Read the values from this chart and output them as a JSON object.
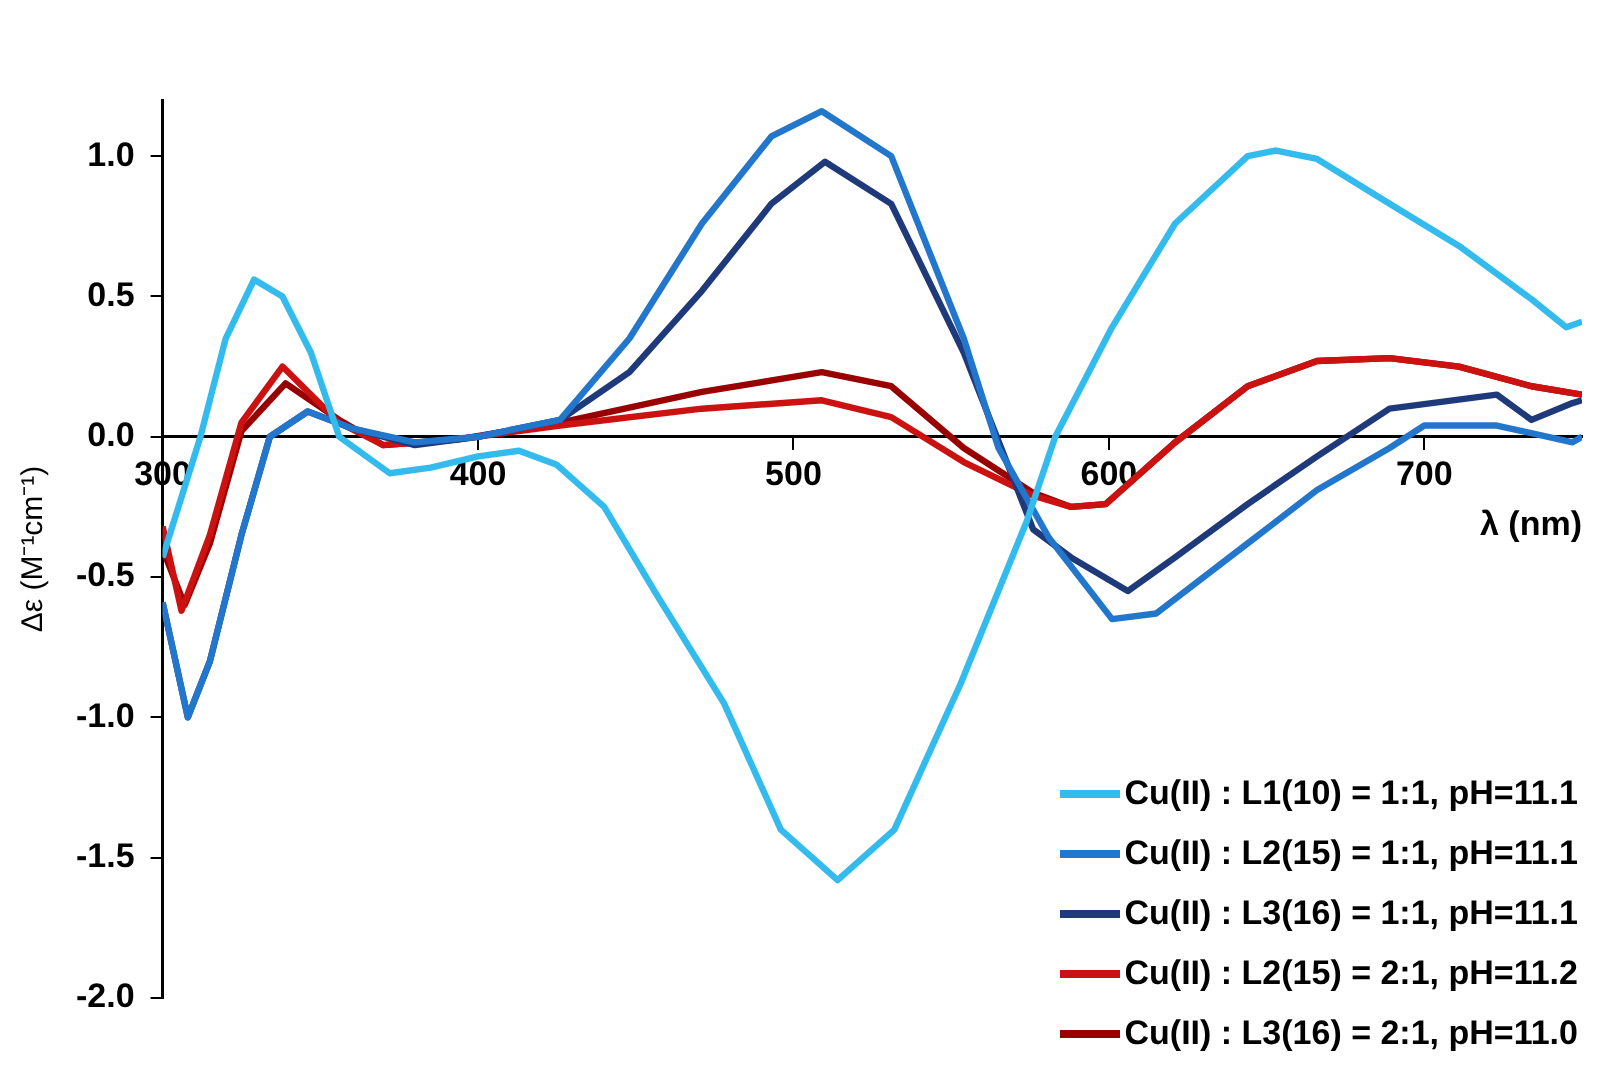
{
  "chart_data": {
    "type": "line",
    "xlabel": "λ (nm)",
    "ylabel": "Δε (M⁻¹cm⁻¹)",
    "xlim": [
      300,
      750
    ],
    "xticks": [
      300,
      400,
      500,
      600,
      700
    ],
    "ylim": [
      -2,
      1.2
    ],
    "yticks": [
      {
        "value": -2,
        "label": "-2.0"
      },
      {
        "value": -1.5,
        "label": "-1.5"
      },
      {
        "value": -1,
        "label": "-1.0"
      },
      {
        "value": -0.5,
        "label": "-0.5"
      },
      {
        "value": 0,
        "label": "0.0"
      },
      {
        "value": 0.5,
        "label": "0.5"
      },
      {
        "value": 1,
        "label": "1.0"
      }
    ],
    "grid": false,
    "legend": "bottom right",
    "marker": "none",
    "line_style": "solid",
    "series": [
      {
        "name": "Cu(II) : L1(10) = 1:1, pH=11.1",
        "color": "#33bbee",
        "x": [
          300,
          312,
          320,
          329,
          338,
          347,
          356,
          372,
          385,
          400,
          413,
          425,
          440,
          457,
          478,
          496,
          514,
          532,
          553,
          574,
          583,
          601,
          621,
          644,
          653,
          666,
          689,
          711,
          734,
          745,
          750
        ],
        "values": [
          -0.43,
          0,
          0.35,
          0.56,
          0.5,
          0.3,
          0,
          -0.13,
          -0.11,
          -0.07,
          -0.05,
          -0.1,
          -0.25,
          -0.57,
          -0.95,
          -1.4,
          -1.58,
          -1.4,
          -0.88,
          -0.3,
          0,
          0.39,
          0.76,
          1,
          1.02,
          0.99,
          0.83,
          0.68,
          0.49,
          0.39,
          0.41
        ]
      },
      {
        "name": "Cu(II) : L2(15) = 1:1, pH=11.1",
        "color": "#2277cc",
        "x": [
          300,
          308,
          315,
          325,
          334,
          346,
          360,
          380,
          400,
          426,
          448,
          471,
          493,
          509,
          531,
          554,
          565,
          581,
          601,
          615,
          644,
          666,
          689,
          700,
          723,
          747,
          750
        ],
        "values": [
          -0.59,
          -1.0,
          -0.8,
          -0.35,
          0,
          0.09,
          0.03,
          -0.02,
          0,
          0.06,
          0.35,
          0.76,
          1.07,
          1.16,
          1.0,
          0.35,
          -0.04,
          -0.36,
          -0.65,
          -0.63,
          -0.38,
          -0.19,
          -0.04,
          0.04,
          0.04,
          -0.02,
          0
        ]
      },
      {
        "name": "Cu(II) : L3(16) = 1:1, pH=11.1",
        "color": "#1f3a7a",
        "x": [
          300,
          308,
          315,
          325,
          334,
          346,
          360,
          380,
          400,
          426,
          448,
          471,
          493,
          510,
          531,
          554,
          576,
          588,
          606,
          621,
          644,
          666,
          689,
          723,
          734,
          747,
          750
        ],
        "values": [
          -0.59,
          -1.0,
          -0.8,
          -0.35,
          0,
          0.09,
          0.03,
          -0.03,
          0,
          0.06,
          0.23,
          0.52,
          0.83,
          0.98,
          0.83,
          0.3,
          -0.33,
          -0.43,
          -0.55,
          -0.43,
          -0.24,
          -0.07,
          0.1,
          0.15,
          0.06,
          0.12,
          0.13
        ]
      },
      {
        "name": "Cu(II) : L2(15) = 2:1, pH=11.2",
        "color": "#cc1111",
        "x": [
          300,
          306,
          315,
          325,
          338,
          356,
          370,
          393,
          426,
          471,
          509,
          531,
          554,
          576,
          588,
          599,
          621,
          644,
          666,
          689,
          711,
          734,
          750
        ],
        "values": [
          -0.32,
          -0.62,
          -0.35,
          0.05,
          0.25,
          0.05,
          -0.03,
          -0.01,
          0.04,
          0.1,
          0.13,
          0.07,
          -0.09,
          -0.21,
          -0.25,
          -0.24,
          -0.02,
          0.18,
          0.27,
          0.28,
          0.25,
          0.18,
          0.15
        ]
      },
      {
        "name": "Cu(II) : L3(16) = 2:1, pH=11.0",
        "color": "#990000",
        "x": [
          300,
          307,
          315,
          325,
          339,
          356,
          370,
          393,
          426,
          471,
          509,
          531,
          554,
          576,
          588,
          599,
          621,
          644,
          666,
          689,
          711,
          734,
          750
        ],
        "values": [
          -0.4,
          -0.6,
          -0.38,
          0.02,
          0.19,
          0.06,
          -0.03,
          -0.01,
          0.05,
          0.16,
          0.23,
          0.18,
          -0.04,
          -0.2,
          -0.25,
          -0.24,
          -0.02,
          0.18,
          0.27,
          0.28,
          0.25,
          0.18,
          0.15
        ]
      }
    ]
  }
}
